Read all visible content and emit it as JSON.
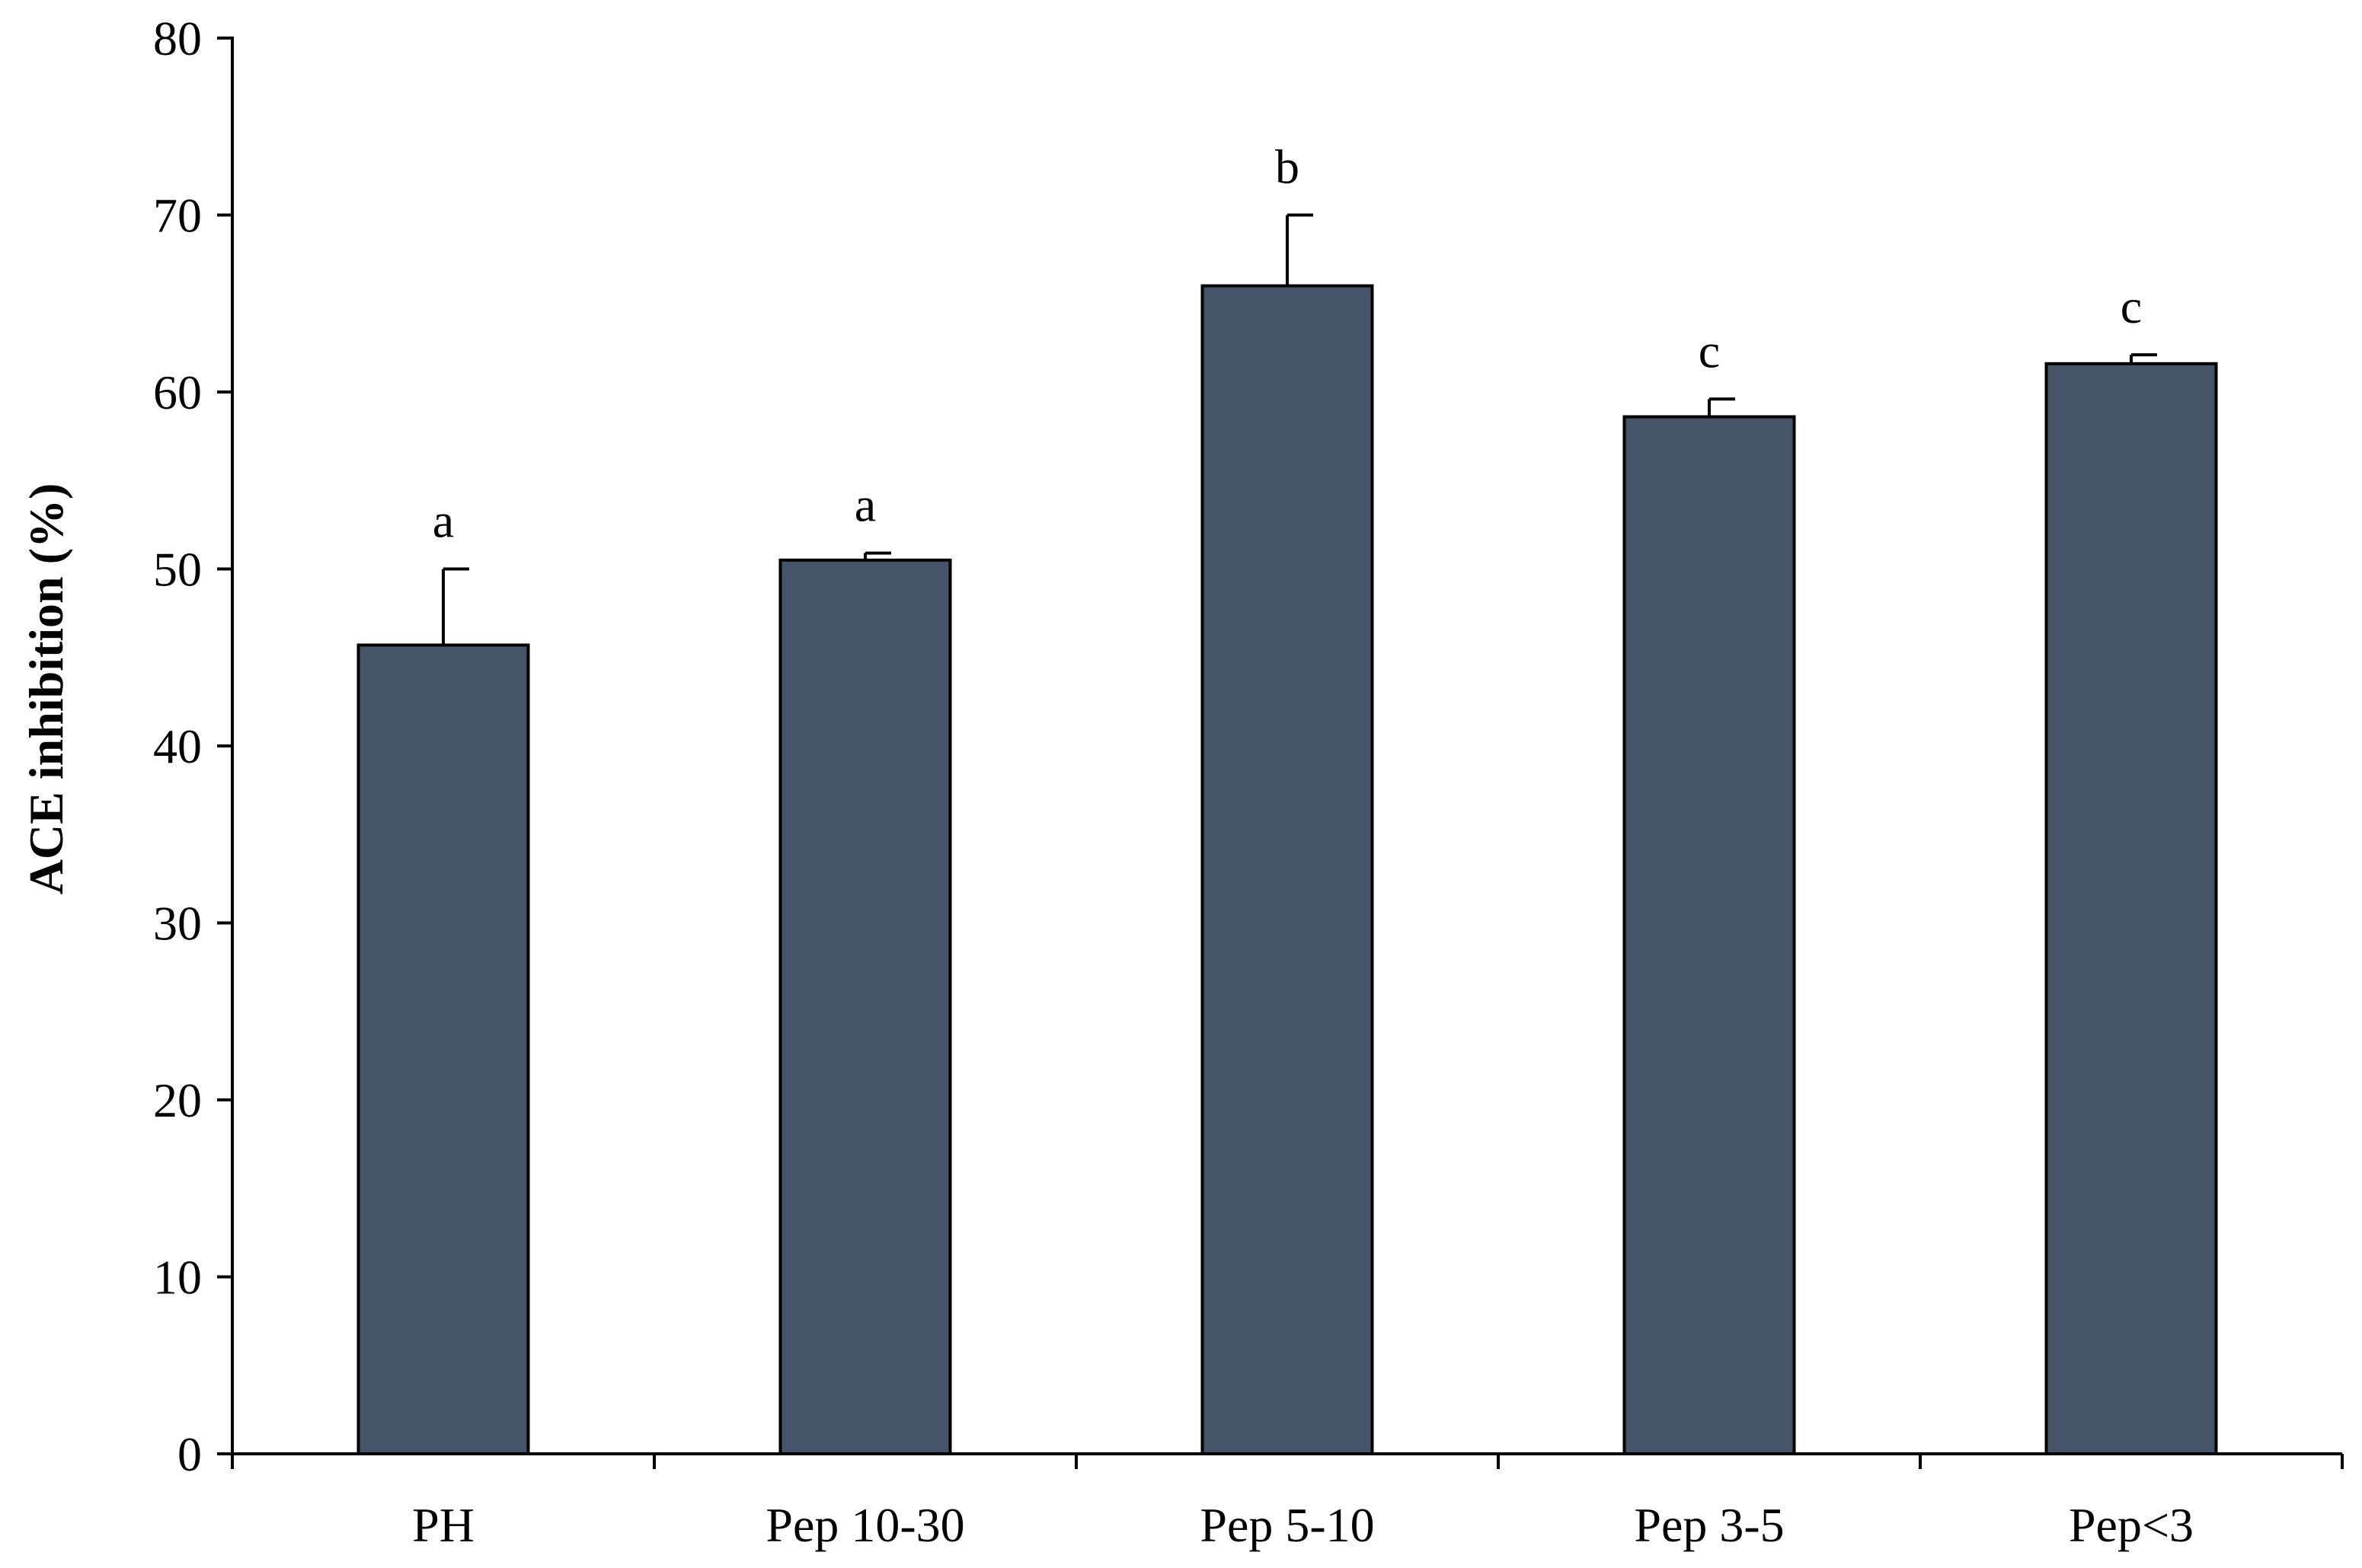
{
  "chart_data": {
    "type": "bar",
    "title": "",
    "xlabel": "",
    "ylabel": "ACE inhibition (%)",
    "ylim": [
      0,
      80
    ],
    "yticks": [
      0,
      10,
      20,
      30,
      40,
      50,
      60,
      70,
      80
    ],
    "grid": false,
    "legend": "none",
    "categories": [
      "PH",
      "Pep 10-30",
      "Pep 5-10",
      "Pep 3-5",
      "Pep<3"
    ],
    "series": [
      {
        "values": [
          45.7,
          50.5,
          66.0,
          58.6,
          61.6
        ],
        "errors": [
          4.3,
          0.4,
          4.0,
          1.0,
          0.5
        ],
        "labels": [
          "a",
          "a",
          "b",
          "c",
          "c"
        ],
        "color": "#465469"
      }
    ]
  }
}
